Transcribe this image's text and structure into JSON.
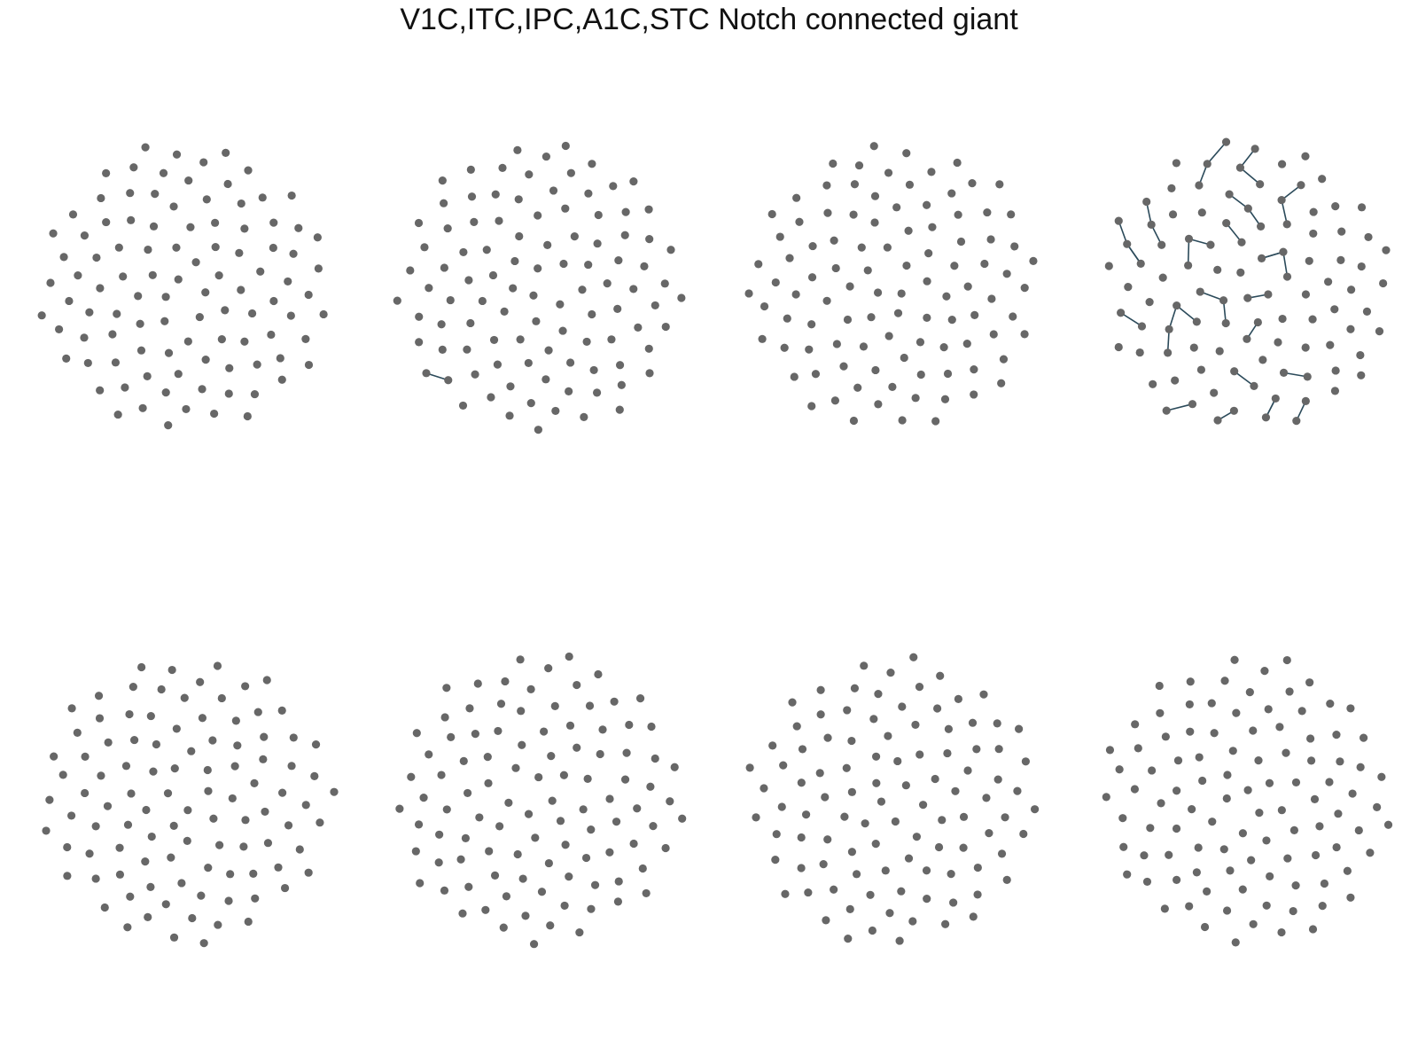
{
  "title": "V1C,ITC,IPC,A1C,STC Notch connected giant"
}
